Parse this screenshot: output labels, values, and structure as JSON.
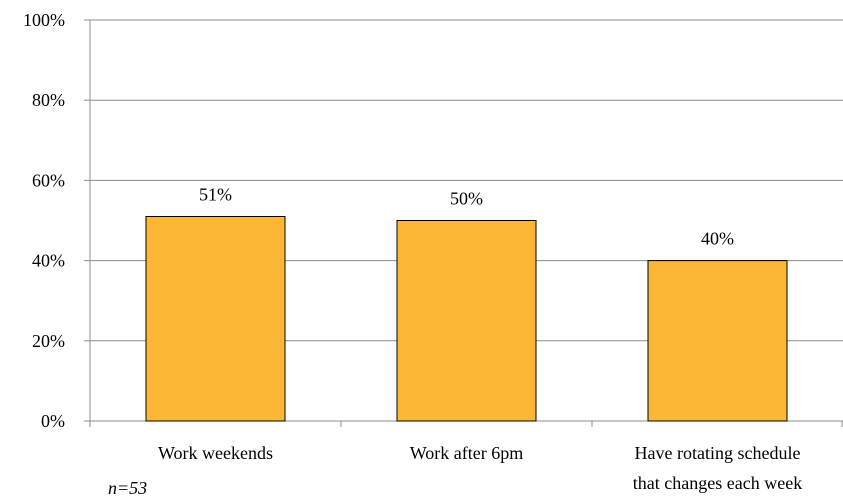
{
  "chart_data": {
    "type": "bar",
    "categories": [
      "Work weekends",
      "Work after 6pm",
      "Have rotating schedule that changes each week"
    ],
    "category_lines": [
      [
        "Work weekends"
      ],
      [
        "Work after 6pm"
      ],
      [
        "Have rotating schedule",
        "that changes each week"
      ]
    ],
    "series": [
      {
        "values": [
          51,
          50,
          40
        ],
        "color": "#FBB735"
      }
    ],
    "data_labels": [
      "51%",
      "50%",
      "40%"
    ],
    "ylim": [
      0,
      100
    ],
    "yticks": [
      0,
      20,
      40,
      60,
      80,
      100
    ],
    "ytick_labels": [
      "0%",
      "20%",
      "40%",
      "60%",
      "80%",
      "100%"
    ],
    "grid": true,
    "gridline_color": "#8C8C8C",
    "bar_edge_color": "#000000",
    "title": "",
    "xlabel": "",
    "ylabel": ""
  },
  "note": "n=53"
}
